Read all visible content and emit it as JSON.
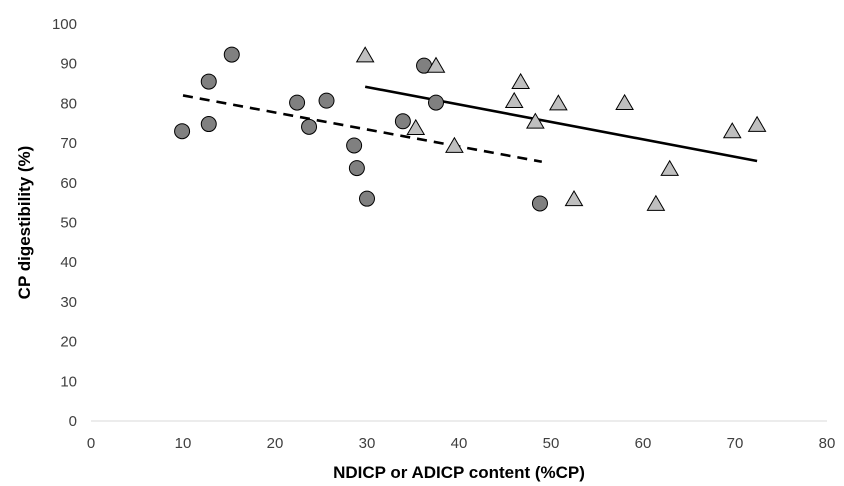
{
  "chart_data": {
    "type": "scatter",
    "title": "",
    "xlabel": "NDICP or ADICP content (%CP)",
    "ylabel": "CP digestibility (%)",
    "xlim": [
      0,
      80
    ],
    "ylim": [
      0,
      100
    ],
    "xticks": [
      0,
      10,
      20,
      30,
      40,
      50,
      60,
      70,
      80
    ],
    "yticks": [
      0,
      10,
      20,
      30,
      40,
      50,
      60,
      70,
      80,
      90,
      100
    ],
    "grid": false,
    "legend": "none",
    "series": [
      {
        "marker": "circle",
        "color": "#808080",
        "points": [
          [
            9.9,
            73
          ],
          [
            12.8,
            85.5
          ],
          [
            12.8,
            74.8
          ],
          [
            15.3,
            92.3
          ],
          [
            22.4,
            80.2
          ],
          [
            23.7,
            74.1
          ],
          [
            25.6,
            80.7
          ],
          [
            28.6,
            69.4
          ],
          [
            28.9,
            63.7
          ],
          [
            30.0,
            56
          ],
          [
            33.9,
            75.5
          ],
          [
            36.2,
            89.5
          ],
          [
            37.5,
            80.2
          ],
          [
            48.8,
            54.8
          ]
        ],
        "trendline": {
          "style": "dashed",
          "x": [
            10,
            49
          ],
          "y": [
            82,
            65.3
          ]
        }
      },
      {
        "marker": "triangle",
        "color": "#bfbfbf",
        "points": [
          [
            29.8,
            92
          ],
          [
            35.3,
            73.7
          ],
          [
            37.5,
            89.4
          ],
          [
            39.5,
            69.2
          ],
          [
            46.0,
            80.5
          ],
          [
            46.7,
            85.3
          ],
          [
            48.3,
            75.3
          ],
          [
            50.8,
            79.9
          ],
          [
            52.5,
            55.8
          ],
          [
            58.0,
            80
          ],
          [
            61.4,
            54.6
          ],
          [
            62.9,
            63.4
          ],
          [
            69.7,
            72.9
          ],
          [
            72.4,
            74.5
          ]
        ],
        "trendline": {
          "style": "solid",
          "x": [
            29.8,
            72.4
          ],
          "y": [
            84.2,
            65.5
          ]
        }
      }
    ]
  }
}
